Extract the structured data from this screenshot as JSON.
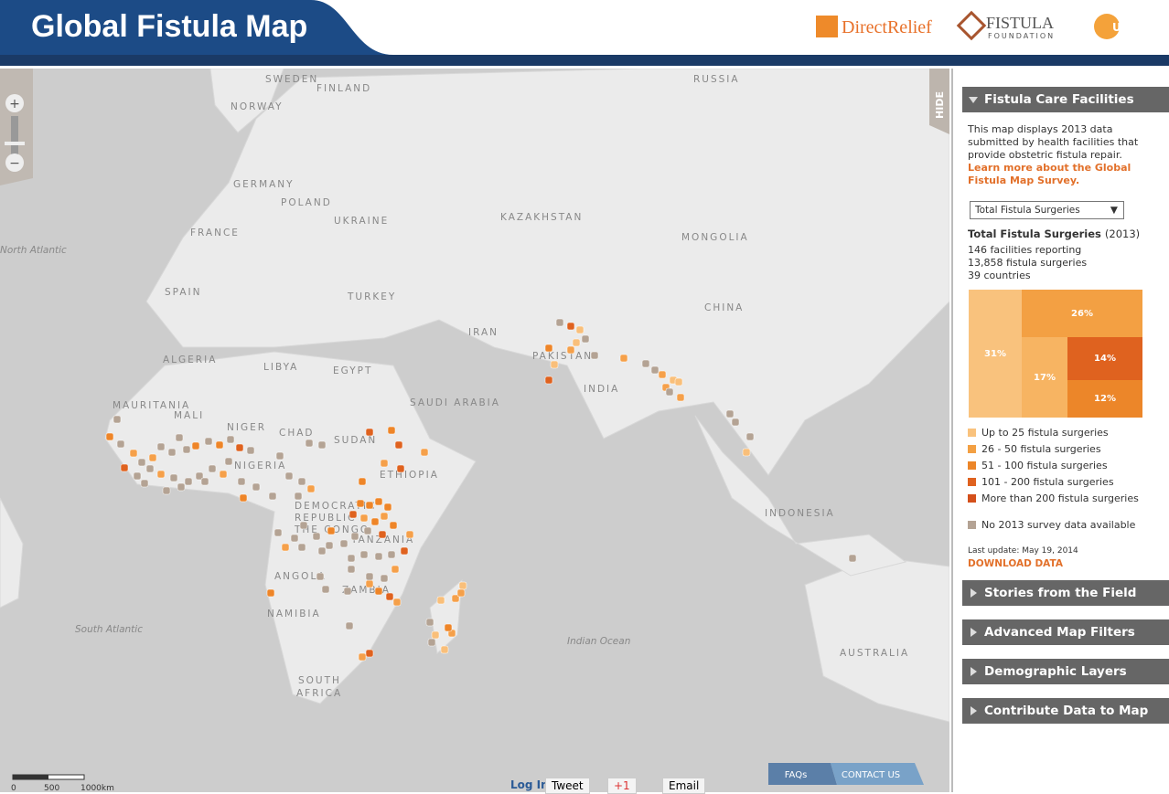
{
  "header": {
    "title": "Global Fistula Map",
    "logos": [
      "DirectRelief",
      "FISTULA",
      "FOUNDATION",
      "UNFPA"
    ]
  },
  "map": {
    "labels": [
      "SWEDEN",
      "FINLAND",
      "NORWAY",
      "RUSSIA",
      "GERMANY",
      "POLAND",
      "UKRAINE",
      "KAZAKHSTAN",
      "MONGOLIA",
      "FRANCE",
      "North Atlantic",
      "SPAIN",
      "TURKEY",
      "CHINA",
      "IRAN",
      "ALGERIA",
      "LIBYA",
      "EGYPT",
      "PAKISTAN",
      "INDIA",
      "SAUDI ARABIA",
      "MAURITANIA",
      "MALI",
      "NIGER",
      "CHAD",
      "SUDAN",
      "NIGERIA",
      "ETHIOPIA",
      "DEMOCRATIC",
      "REPUBLIC",
      "THE CONGO",
      "TANZANIA",
      "ANGOLA",
      "ZAMBIA",
      "NAMIBIA",
      "INDONESIA",
      "South Atlantic",
      "Indian Ocean",
      "AUSTRALIA",
      "SOUTH",
      "AFRICA"
    ],
    "hide": "HIDE",
    "scale": [
      "0",
      "500",
      "1000km"
    ]
  },
  "sidebar": {
    "facilities": {
      "title": "Fistula Care Facilities",
      "description": "This map displays 2013 data submitted by health facilities that provide obstetric fistula repair.",
      "link": "Learn more about the Global Fistula Map Survey.",
      "select": "Total Fistula Surgeries",
      "stats_title": "Total Fistula Surgeries",
      "stats_year": "(2013)",
      "stats": [
        "146 facilities reporting",
        "13,858 fistula surgeries",
        "39 countries"
      ],
      "treemap": [
        "31%",
        "26%",
        "17%",
        "14%",
        "12%"
      ],
      "legend": [
        "Up to 25 fistula surgeries",
        "26 - 50 fistula surgeries",
        "51 - 100 fistula surgeries",
        "101 - 200 fistula surgeries",
        "More than 200 fistula surgeries",
        "No 2013 survey data available"
      ],
      "last_update": "Last update: May 19, 2014",
      "download": "DOWNLOAD DATA"
    },
    "sections": [
      "Stories from the Field",
      "Advanced Map Filters",
      "Demographic Layers",
      "Contribute Data to Map"
    ]
  },
  "footer": {
    "login": "Log In",
    "tweet": "Tweet",
    "gplus": "+1",
    "email": "Email",
    "faqs": "FAQs",
    "contact": "CONTACT US"
  }
}
